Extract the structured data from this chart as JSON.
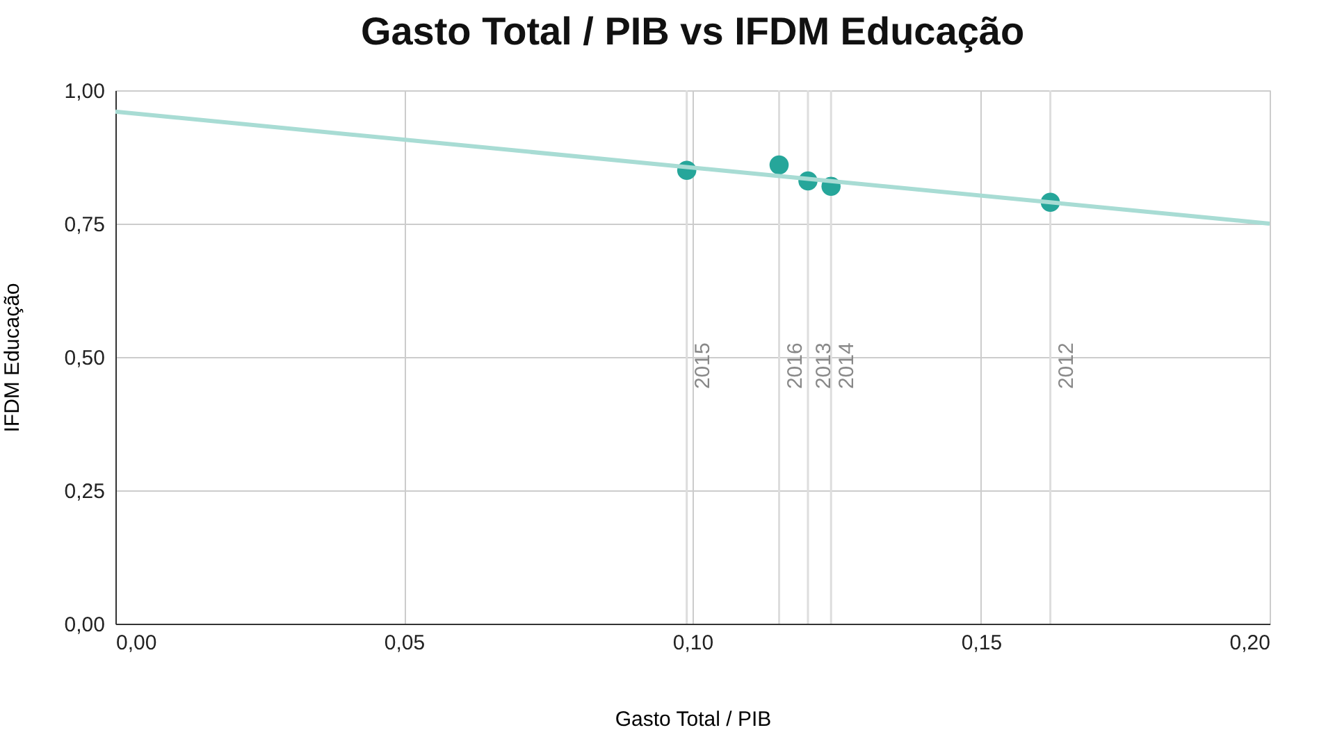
{
  "chart_data": {
    "type": "scatter",
    "title": "Gasto Total / PIB vs IFDM Educação",
    "xlabel": "Gasto Total / PIB",
    "ylabel": "IFDM Educação",
    "series": [
      {
        "type": "scatter",
        "marker": "circle",
        "color": "#26a69a",
        "x": [
          0.099,
          0.115,
          0.12,
          0.124,
          0.162
        ],
        "values": [
          0.85,
          0.86,
          0.83,
          0.82,
          0.79
        ]
      },
      {
        "type": "line",
        "marker": "none",
        "color": "#a8dcd4",
        "x": [
          0.0,
          0.2
        ],
        "values": [
          0.96,
          0.75
        ]
      }
    ],
    "ref_lines": [
      {
        "axis": "x",
        "value": 0.099,
        "color": "#dddddd"
      },
      {
        "axis": "x",
        "value": 0.115,
        "color": "#dddddd"
      },
      {
        "axis": "x",
        "value": 0.12,
        "color": "#dddddd"
      },
      {
        "axis": "x",
        "value": 0.124,
        "color": "#dddddd"
      },
      {
        "axis": "x",
        "value": 0.162,
        "color": "#dddddd"
      }
    ],
    "annotations": [
      {
        "text": "2015",
        "x": 0.099,
        "y": 0.44
      },
      {
        "text": "2016",
        "x": 0.115,
        "y": 0.44
      },
      {
        "text": "2013",
        "x": 0.12,
        "y": 0.44
      },
      {
        "text": "2014",
        "x": 0.124,
        "y": 0.44
      },
      {
        "text": "2012",
        "x": 0.162,
        "y": 0.44
      }
    ],
    "xlim": [
      0,
      0.2
    ],
    "xticks": [
      {
        "value": 0,
        "label": "0,00"
      },
      {
        "value": 0.05,
        "label": "0,05"
      },
      {
        "value": 0.1,
        "label": "0,10"
      },
      {
        "value": 0.15,
        "label": "0,15"
      },
      {
        "value": 0.2,
        "label": "0,20"
      }
    ],
    "ylim": [
      0,
      1
    ],
    "yticks": [
      {
        "value": 0,
        "label": "0,00"
      },
      {
        "value": 0.25,
        "label": "0,25"
      },
      {
        "value": 0.5,
        "label": "0,50"
      },
      {
        "value": 0.75,
        "label": "0,75"
      },
      {
        "value": 1,
        "label": "1,00"
      }
    ],
    "grid": true
  }
}
